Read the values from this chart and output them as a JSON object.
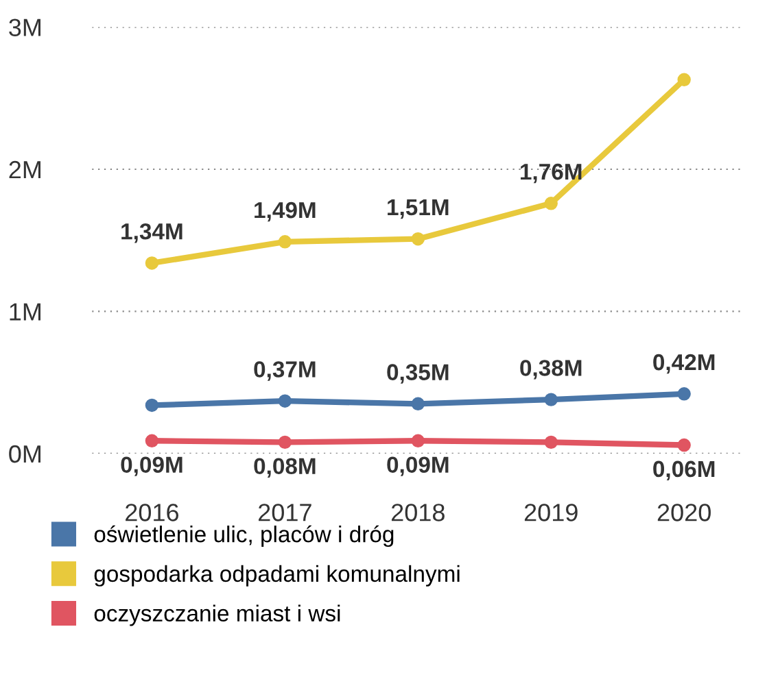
{
  "chart_data": {
    "type": "line",
    "categories": [
      "2016",
      "2017",
      "2018",
      "2019",
      "2020"
    ],
    "ylim": [
      0,
      3
    ],
    "yticks": [
      {
        "value": 0,
        "label": "0M"
      },
      {
        "value": 1,
        "label": "1M"
      },
      {
        "value": 2,
        "label": "2M"
      },
      {
        "value": 3,
        "label": "3M"
      }
    ],
    "grid": "y",
    "legend": "bottom",
    "marker": "circle",
    "line_style": "solid",
    "series": [
      {
        "name": "oświetlenie ulic, placów i dróg",
        "color": "#4a76a8",
        "values": [
          0.34,
          0.37,
          0.35,
          0.38,
          0.42
        ],
        "value_labels": [
          null,
          "0,37M",
          "0,35M",
          "0,38M",
          "0,42M"
        ]
      },
      {
        "name": "gospodarka odpadami komunalnymi",
        "color": "#e8c93c",
        "values": [
          1.34,
          1.49,
          1.51,
          1.76,
          2.63
        ],
        "value_labels": [
          "1,34M",
          "1,49M",
          "1,51M",
          "1,76M",
          null
        ]
      },
      {
        "name": "oczyszczanie miast i wsi",
        "color": "#e05561",
        "values": [
          0.09,
          0.08,
          0.09,
          0.08,
          0.06
        ],
        "value_labels": [
          "0,09M",
          "0,08M",
          "0,09M",
          null,
          "0,06M"
        ]
      }
    ]
  }
}
